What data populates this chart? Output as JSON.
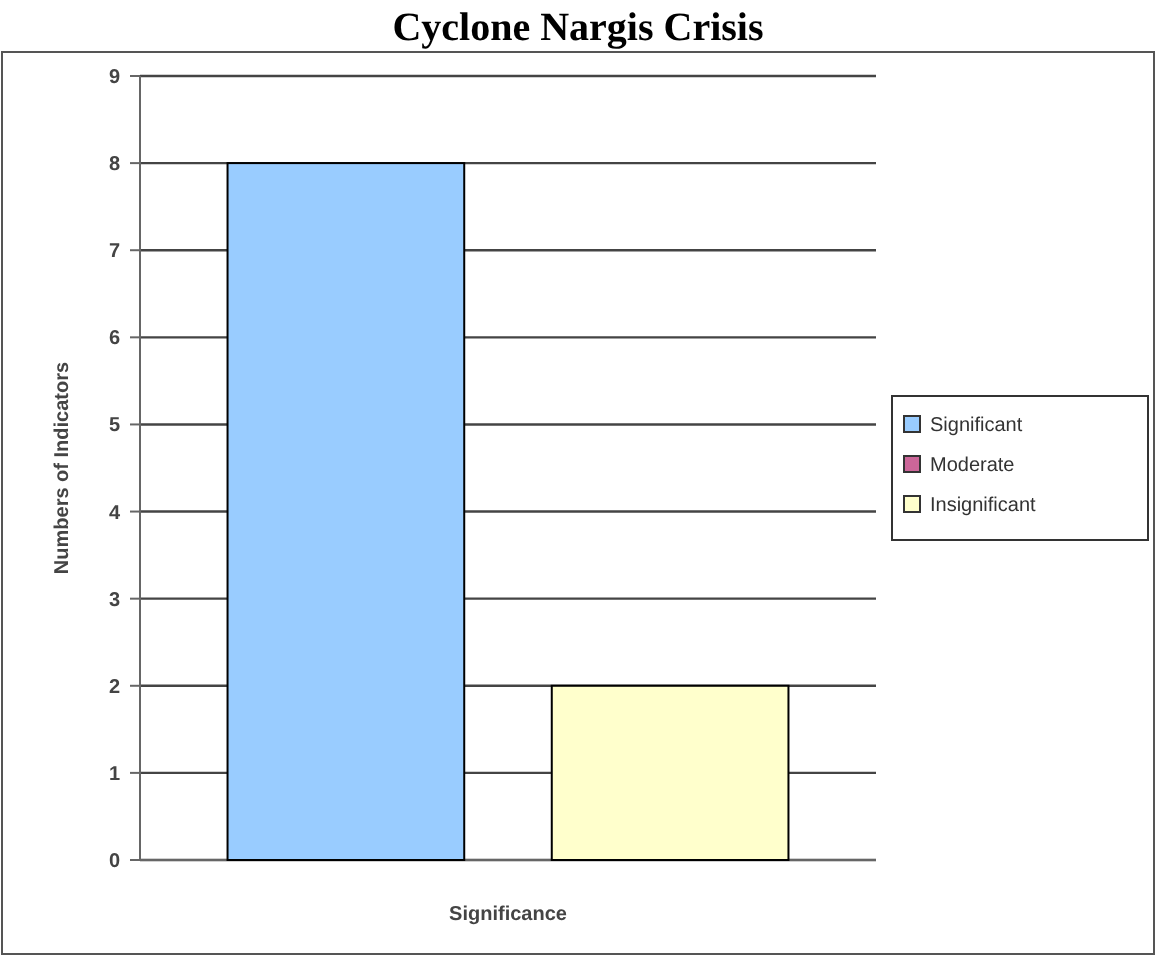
{
  "chart_data": {
    "type": "bar",
    "title": "Cyclone Nargis Crisis",
    "xlabel": "Significance",
    "ylabel": "Numbers of Indicators",
    "categories": [
      null,
      null
    ],
    "series": [
      {
        "name": "Significant",
        "color": "#99ccff",
        "values": [
          8,
          null
        ]
      },
      {
        "name": "Moderate",
        "color": "#cc6699",
        "values": [
          null,
          null
        ]
      },
      {
        "name": "Insignificant",
        "color": "#ffffcc",
        "values": [
          null,
          2
        ]
      }
    ],
    "ylim": [
      0,
      9
    ],
    "yticks": [
      0,
      1,
      2,
      3,
      4,
      5,
      6,
      7,
      8,
      9
    ],
    "grid": "y",
    "legend": "right"
  }
}
